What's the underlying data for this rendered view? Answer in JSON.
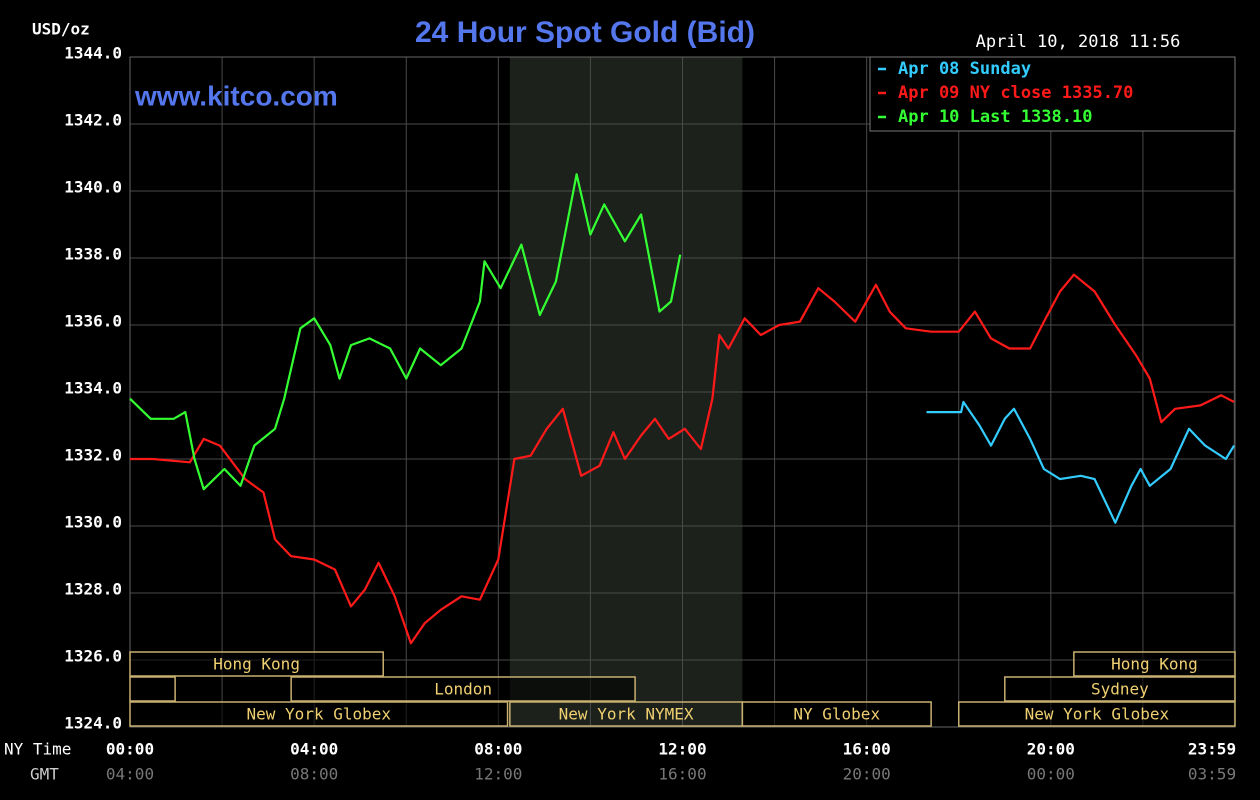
{
  "chart_data": {
    "type": "line",
    "title": "24 Hour Spot Gold (Bid)",
    "date": "April 10, 2018 11:56",
    "watermark": "www.kitco.com",
    "y_label": "USD/oz",
    "x_label": "NY Time",
    "x2_label": "GMT",
    "xlim": [
      0,
      24
    ],
    "xticks": [
      {
        "value": 0,
        "label": "00:00"
      },
      {
        "value": 4,
        "label": "04:00"
      },
      {
        "value": 8,
        "label": "08:00"
      },
      {
        "value": 12,
        "label": "12:00"
      },
      {
        "value": 16,
        "label": "16:00"
      },
      {
        "value": 20,
        "label": "20:00"
      },
      {
        "value": 23.983,
        "label": "23:59"
      }
    ],
    "gmt_labels": [
      "04:00",
      "08:00",
      "12:00",
      "16:00",
      "20:00",
      "00:00",
      "03:59"
    ],
    "xgrid": [
      2,
      6,
      10,
      14,
      18,
      22
    ],
    "ylim": [
      1324,
      1344
    ],
    "yticks": [
      {
        "value": 1324,
        "label": "1324.0"
      },
      {
        "value": 1326,
        "label": "1326.0"
      },
      {
        "value": 1328,
        "label": "1328.0"
      },
      {
        "value": 1330,
        "label": "1330.0"
      },
      {
        "value": 1332,
        "label": "1332.0"
      },
      {
        "value": 1334,
        "label": "1334.0"
      },
      {
        "value": 1336,
        "label": "1336.0"
      },
      {
        "value": 1338,
        "label": "1338.0"
      },
      {
        "value": 1340,
        "label": "1340.0"
      },
      {
        "value": 1342,
        "label": "1342.0"
      },
      {
        "value": 1344,
        "label": "1344.0"
      }
    ],
    "grid": true,
    "legend": "top-right",
    "series": [
      {
        "name": "Apr 08 Sunday",
        "color": "#33ccff",
        "x": [
          17.3,
          18.05,
          18.1,
          18.45,
          18.7,
          19.0,
          19.2,
          19.55,
          19.85,
          20.2,
          20.65,
          20.95,
          21.4,
          21.75,
          21.95,
          22.15,
          22.6,
          23.0,
          23.35,
          23.8,
          23.98
        ],
        "values": [
          1333.4,
          1333.4,
          1333.7,
          1333.0,
          1332.4,
          1333.2,
          1333.5,
          1332.6,
          1331.7,
          1331.4,
          1331.5,
          1331.4,
          1330.1,
          1331.2,
          1331.7,
          1331.2,
          1331.7,
          1332.9,
          1332.4,
          1332.0,
          1332.4
        ]
      },
      {
        "name": "Apr 09 NY close 1335.70",
        "color": "#ff1a1a",
        "x": [
          0,
          0.5,
          1.3,
          1.6,
          1.95,
          2.5,
          2.9,
          3.15,
          3.5,
          4.0,
          4.45,
          4.8,
          5.1,
          5.4,
          5.75,
          6.1,
          6.4,
          6.75,
          7.2,
          7.6,
          8.0,
          8.35,
          8.7,
          9.05,
          9.4,
          9.8,
          10.2,
          10.5,
          10.75,
          11.1,
          11.4,
          11.7,
          12.05,
          12.4,
          12.65,
          12.8,
          13.0,
          13.35,
          13.7,
          14.1,
          14.55,
          14.95,
          15.3,
          15.75,
          16.2,
          16.5,
          16.85,
          17.4,
          18.0,
          18.35,
          18.7,
          19.1,
          19.55,
          19.85,
          20.2,
          20.5,
          20.95,
          21.4,
          21.85,
          22.15,
          22.4,
          22.7,
          23.25,
          23.7,
          23.98
        ],
        "values": [
          1332.0,
          1332.0,
          1331.9,
          1332.6,
          1332.4,
          1331.4,
          1331.0,
          1329.6,
          1329.1,
          1329.0,
          1328.7,
          1327.6,
          1328.1,
          1328.9,
          1327.9,
          1326.5,
          1327.1,
          1327.5,
          1327.9,
          1327.8,
          1329.0,
          1332.0,
          1332.1,
          1332.9,
          1333.5,
          1331.5,
          1331.8,
          1332.8,
          1332.0,
          1332.7,
          1333.2,
          1332.6,
          1332.9,
          1332.3,
          1333.8,
          1335.7,
          1335.3,
          1336.2,
          1335.7,
          1336.0,
          1336.1,
          1337.1,
          1336.7,
          1336.1,
          1337.2,
          1336.4,
          1335.9,
          1335.8,
          1335.8,
          1336.4,
          1335.6,
          1335.3,
          1335.3,
          1336.1,
          1337.0,
          1337.5,
          1337.0,
          1336.0,
          1335.1,
          1334.4,
          1333.1,
          1333.5,
          1333.6,
          1333.9,
          1333.7
        ]
      },
      {
        "name": "Apr 10 Last 1338.10",
        "color": "#33ff33",
        "x": [
          0,
          0.45,
          0.95,
          1.2,
          1.4,
          1.6,
          2.05,
          2.4,
          2.7,
          3.15,
          3.35,
          3.7,
          4.0,
          4.35,
          4.55,
          4.8,
          5.2,
          5.65,
          6.0,
          6.3,
          6.75,
          7.2,
          7.6,
          7.7,
          8.05,
          8.5,
          8.9,
          9.25,
          9.7,
          10.0,
          10.3,
          10.75,
          11.1,
          11.5,
          11.75,
          11.95
        ],
        "values": [
          1333.8,
          1333.2,
          1333.2,
          1333.4,
          1332.0,
          1331.1,
          1331.7,
          1331.2,
          1332.4,
          1332.9,
          1333.8,
          1335.9,
          1336.2,
          1335.4,
          1334.4,
          1335.4,
          1335.6,
          1335.3,
          1334.4,
          1335.3,
          1334.8,
          1335.3,
          1336.7,
          1337.9,
          1337.1,
          1338.4,
          1336.3,
          1337.3,
          1340.5,
          1338.7,
          1339.6,
          1338.5,
          1339.3,
          1336.4,
          1336.7,
          1338.1
        ]
      }
    ],
    "sessions": [
      {
        "name": "Hong Kong",
        "start": 0,
        "end": 5.5,
        "row": 0
      },
      {
        "name": "Hong Kong",
        "start": 20.5,
        "end": 24,
        "row": 0
      },
      {
        "name": null,
        "start": 0,
        "end": 0.98,
        "row": 1
      },
      {
        "name": "London",
        "start": 3.5,
        "end": 10.97,
        "row": 1
      },
      {
        "name": "Sydney",
        "start": 19.0,
        "end": 24,
        "row": 1
      },
      {
        "name": "New York Globex",
        "start": 0,
        "end": 8.2,
        "row": 2
      },
      {
        "name": "New York NYMEX",
        "start": 8.25,
        "end": 13.3,
        "row": 2,
        "highlight": true
      },
      {
        "name": "NY Globex",
        "start": 13.3,
        "end": 17.4,
        "row": 2
      },
      {
        "name": "New York Globex",
        "start": 18.0,
        "end": 24,
        "row": 2
      }
    ]
  }
}
